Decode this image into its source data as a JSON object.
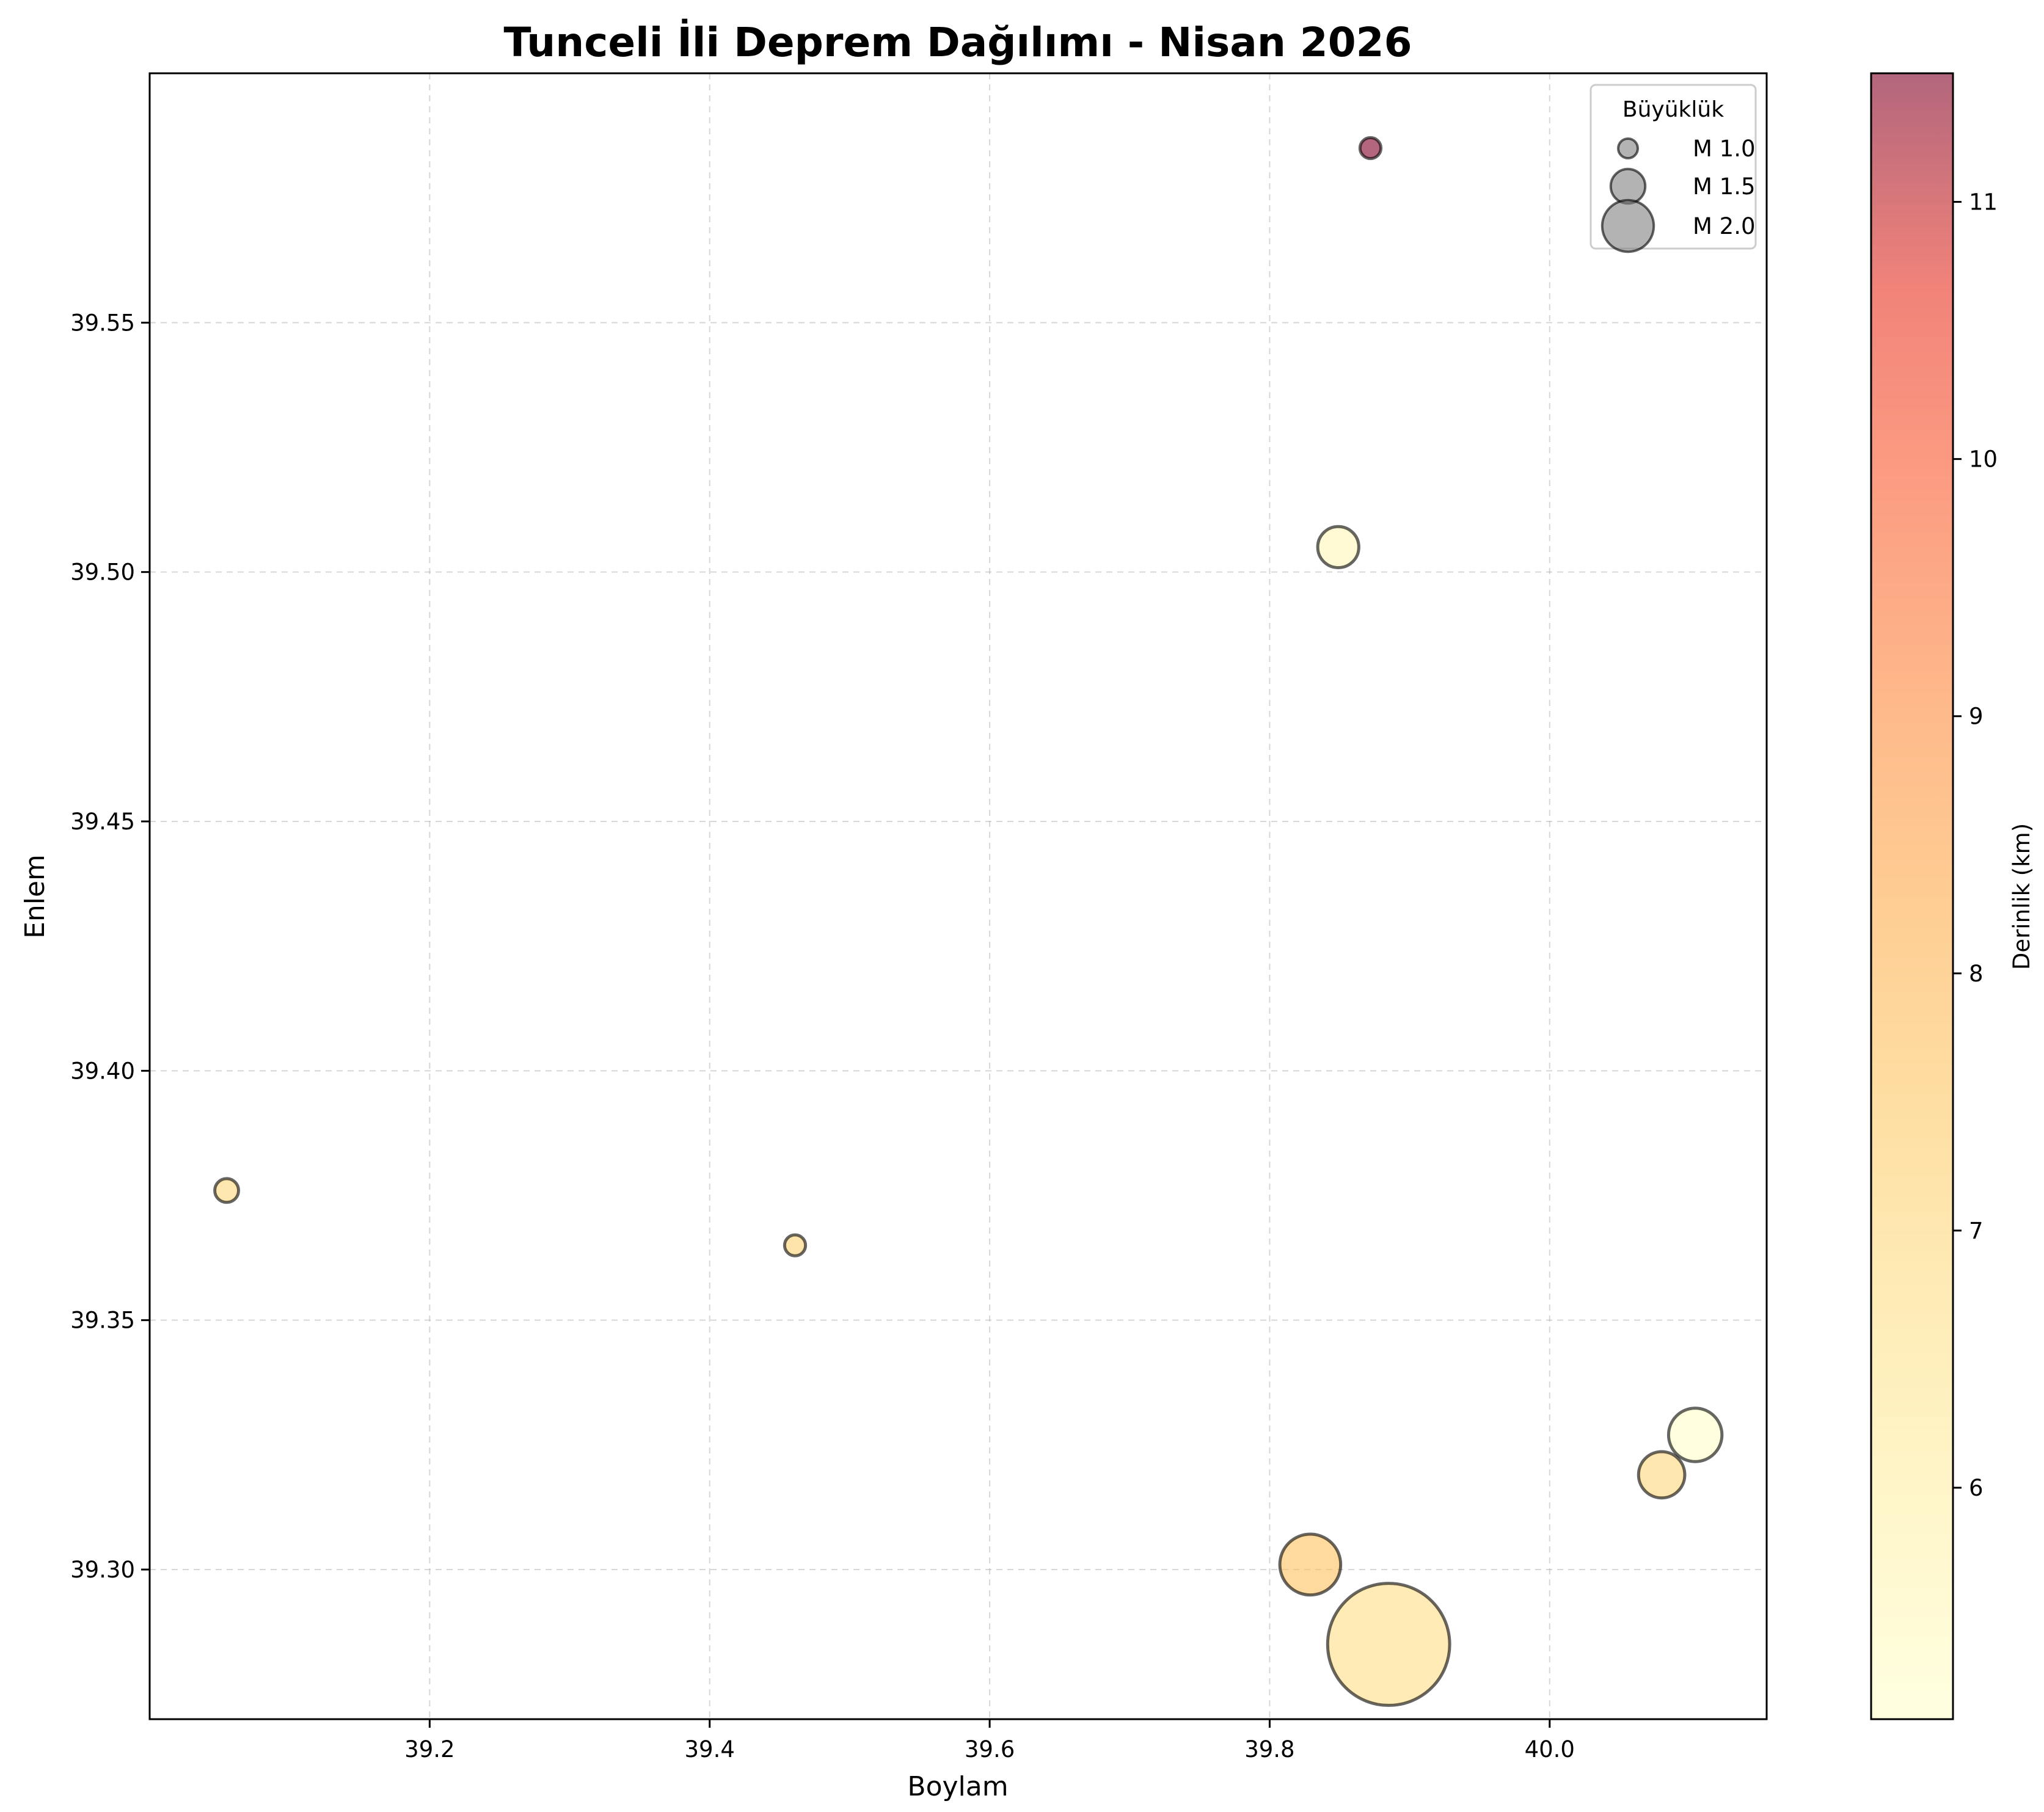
{
  "chart_data": {
    "type": "scatter",
    "title": "Tunceli İli Deprem Dağılımı - Nisan 2026",
    "xlabel": "Boylam",
    "ylabel": "Enlem",
    "xlim": [
      39.0,
      40.155
    ],
    "ylim": [
      39.27,
      39.6
    ],
    "xticks": [
      "39.2",
      "39.4",
      "39.6",
      "39.8",
      "40.0"
    ],
    "yticks": [
      "39.30",
      "39.35",
      "39.40",
      "39.45",
      "39.50",
      "39.55"
    ],
    "grid": true,
    "colormap": "YlOrRd",
    "colorbar": {
      "label": "Derinlik (km)",
      "range": [
        5.1,
        11.5
      ],
      "ticks": [
        "6",
        "7",
        "8",
        "9",
        "10",
        "11"
      ]
    },
    "legend": {
      "title": "Büyüklük",
      "position": "top-right",
      "entries": [
        {
          "label": "M 1.0",
          "magnitude": 1.0
        },
        {
          "label": "M 1.5",
          "magnitude": 1.5
        },
        {
          "label": "M 2.0",
          "magnitude": 2.0
        }
      ]
    },
    "points": [
      {
        "lon": 39.872,
        "lat": 39.585,
        "magnitude": 1.05,
        "depth": 11.5
      },
      {
        "lon": 39.849,
        "lat": 39.505,
        "magnitude": 1.7,
        "depth": 5.6
      },
      {
        "lon": 39.055,
        "lat": 39.376,
        "magnitude": 1.15,
        "depth": 7.0
      },
      {
        "lon": 39.461,
        "lat": 39.365,
        "magnitude": 1.05,
        "depth": 7.2
      },
      {
        "lon": 40.104,
        "lat": 39.327,
        "magnitude": 2.05,
        "depth": 5.2
      },
      {
        "lon": 40.08,
        "lat": 39.319,
        "magnitude": 1.85,
        "depth": 7.0
      },
      {
        "lon": 39.829,
        "lat": 39.301,
        "magnitude": 2.25,
        "depth": 7.7
      },
      {
        "lon": 39.885,
        "lat": 39.285,
        "magnitude": 3.7,
        "depth": 6.8
      }
    ]
  }
}
